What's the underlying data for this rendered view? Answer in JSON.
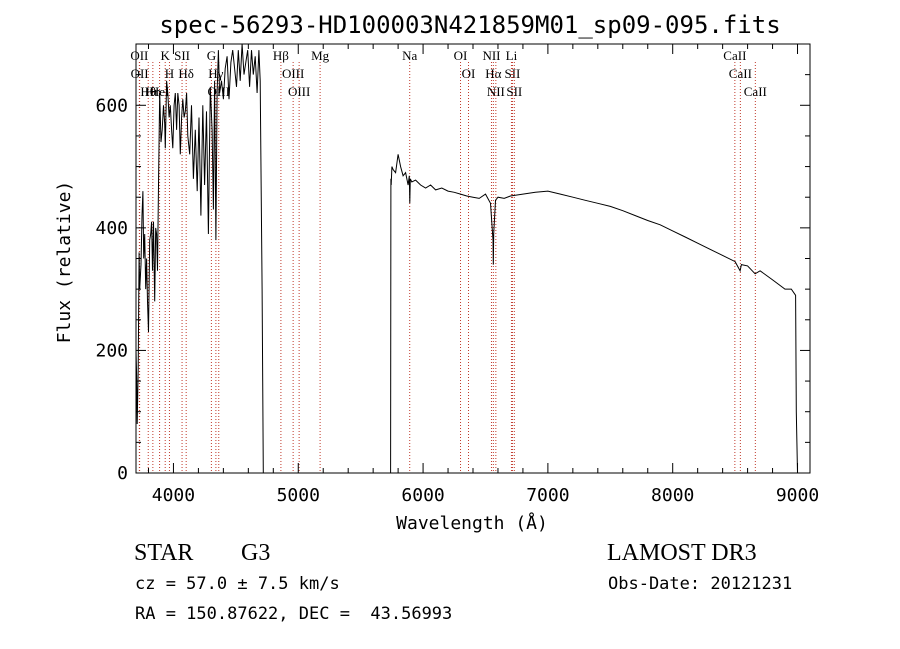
{
  "chart_data": {
    "type": "line",
    "title": "spec-56293-HD100003N421859M01_sp09-095.fits",
    "xlabel": "Wavelength (Å)",
    "ylabel": "Flux (relative)",
    "xlim": [
      3700,
      9100
    ],
    "ylim": [
      0,
      700
    ],
    "xticks": [
      4000,
      5000,
      6000,
      7000,
      8000,
      9000
    ],
    "yticks": [
      0,
      200,
      400,
      600
    ],
    "series": [
      {
        "name": "flux",
        "x": [
          3700,
          3705,
          3710,
          3718,
          3725,
          3730,
          3740,
          3748,
          3755,
          3762,
          3770,
          3778,
          3785,
          3792,
          3800,
          3810,
          3818,
          3825,
          3832,
          3840,
          3850,
          3858,
          3865,
          3872,
          3880,
          3890,
          3900,
          3910,
          3920,
          3930,
          3935,
          3945,
          3955,
          3965,
          3975,
          3985,
          3995,
          4005,
          4015,
          4025,
          4035,
          4045,
          4055,
          4065,
          4075,
          4085,
          4095,
          4105,
          4115,
          4130,
          4145,
          4160,
          4175,
          4190,
          4205,
          4220,
          4235,
          4250,
          4265,
          4280,
          4295,
          4310,
          4320,
          4330,
          4340,
          4350,
          4360,
          4370,
          4385,
          4400,
          4415,
          4430,
          4445,
          4460,
          4475,
          4490,
          4505,
          4520,
          4535,
          4550,
          4565,
          4580,
          4595,
          4610,
          4625,
          4640,
          4655,
          4670,
          4685,
          4695,
          4700,
          4710,
          4720,
          5740,
          5742,
          5745,
          5750,
          5760,
          5780,
          5800,
          5820,
          5840,
          5860,
          5880,
          5890,
          5894,
          5898,
          5910,
          5940,
          5980,
          6020,
          6060,
          6100,
          6150,
          6200,
          6250,
          6300,
          6350,
          6400,
          6450,
          6500,
          6540,
          6560,
          6563,
          6566,
          6580,
          6600,
          6650,
          6700,
          6800,
          6900,
          7000,
          7100,
          7200,
          7300,
          7400,
          7500,
          7600,
          7700,
          7800,
          7900,
          8000,
          8100,
          8200,
          8300,
          8400,
          8500,
          8540,
          8550,
          8600,
          8660,
          8700,
          8800,
          8900,
          8950,
          8985,
          8990,
          8995,
          9000
        ],
        "y": [
          200,
          160,
          80,
          170,
          360,
          300,
          340,
          420,
          460,
          350,
          390,
          300,
          350,
          280,
          230,
          380,
          390,
          410,
          330,
          410,
          280,
          400,
          390,
          330,
          470,
          620,
          540,
          560,
          600,
          570,
          530,
          640,
          620,
          580,
          600,
          560,
          530,
          600,
          620,
          560,
          620,
          600,
          520,
          580,
          610,
          580,
          590,
          620,
          550,
          520,
          600,
          480,
          560,
          460,
          580,
          420,
          600,
          470,
          590,
          390,
          630,
          560,
          430,
          640,
          380,
          620,
          690,
          620,
          640,
          610,
          660,
          680,
          610,
          670,
          690,
          660,
          630,
          690,
          640,
          700,
          650,
          670,
          690,
          630,
          690,
          650,
          680,
          620,
          690,
          640,
          530,
          300,
          0,
          0,
          480,
          470,
          500,
          495,
          490,
          520,
          500,
          485,
          490,
          470,
          485,
          440,
          480,
          475,
          478,
          470,
          465,
          470,
          462,
          465,
          460,
          458,
          455,
          452,
          450,
          448,
          455,
          440,
          380,
          340,
          390,
          445,
          450,
          448,
          452,
          455,
          458,
          460,
          455,
          450,
          445,
          440,
          435,
          428,
          420,
          412,
          405,
          395,
          385,
          375,
          365,
          355,
          345,
          330,
          340,
          338,
          325,
          330,
          315,
          300,
          300,
          290,
          100,
          50,
          0
        ]
      }
    ],
    "lines": [
      {
        "name": "OII",
        "wl": 3727
      },
      {
        "name": "OII",
        "wl": 3729
      },
      {
        "name": "Hθ",
        "wl": 3798
      },
      {
        "name": "Hη",
        "wl": 3835
      },
      {
        "name": "HeI",
        "wl": 3889
      },
      {
        "name": "K",
        "wl": 3934
      },
      {
        "name": "H",
        "wl": 3968
      },
      {
        "name": "SII",
        "wl": 4069
      },
      {
        "name": "Hδ",
        "wl": 4102
      },
      {
        "name": "G",
        "wl": 4304
      },
      {
        "name": "Hγ",
        "wl": 4340
      },
      {
        "name": "OIII",
        "wl": 4363
      },
      {
        "name": "Hβ",
        "wl": 4861
      },
      {
        "name": "OIII",
        "wl": 4959
      },
      {
        "name": "OIII",
        "wl": 5007
      },
      {
        "name": "Mg",
        "wl": 5175
      },
      {
        "name": "Na",
        "wl": 5893
      },
      {
        "name": "OI",
        "wl": 6300
      },
      {
        "name": "OI",
        "wl": 6364
      },
      {
        "name": "NII",
        "wl": 6548
      },
      {
        "name": "Hα",
        "wl": 6563
      },
      {
        "name": "NII",
        "wl": 6583
      },
      {
        "name": "Li",
        "wl": 6708
      },
      {
        "name": "SII",
        "wl": 6716
      },
      {
        "name": "SII",
        "wl": 6731
      },
      {
        "name": "CaII",
        "wl": 8498
      },
      {
        "name": "CaII",
        "wl": 8542
      },
      {
        "name": "CaII",
        "wl": 8662
      }
    ]
  },
  "info": {
    "object_class": "STAR",
    "subclass": "G3",
    "survey": "LAMOST DR3",
    "cz": "cz = 57.0 ± 7.5 km/s",
    "obs_date": "Obs-Date: 20121231",
    "coords": "RA = 150.87622, DEC =  43.56993"
  }
}
